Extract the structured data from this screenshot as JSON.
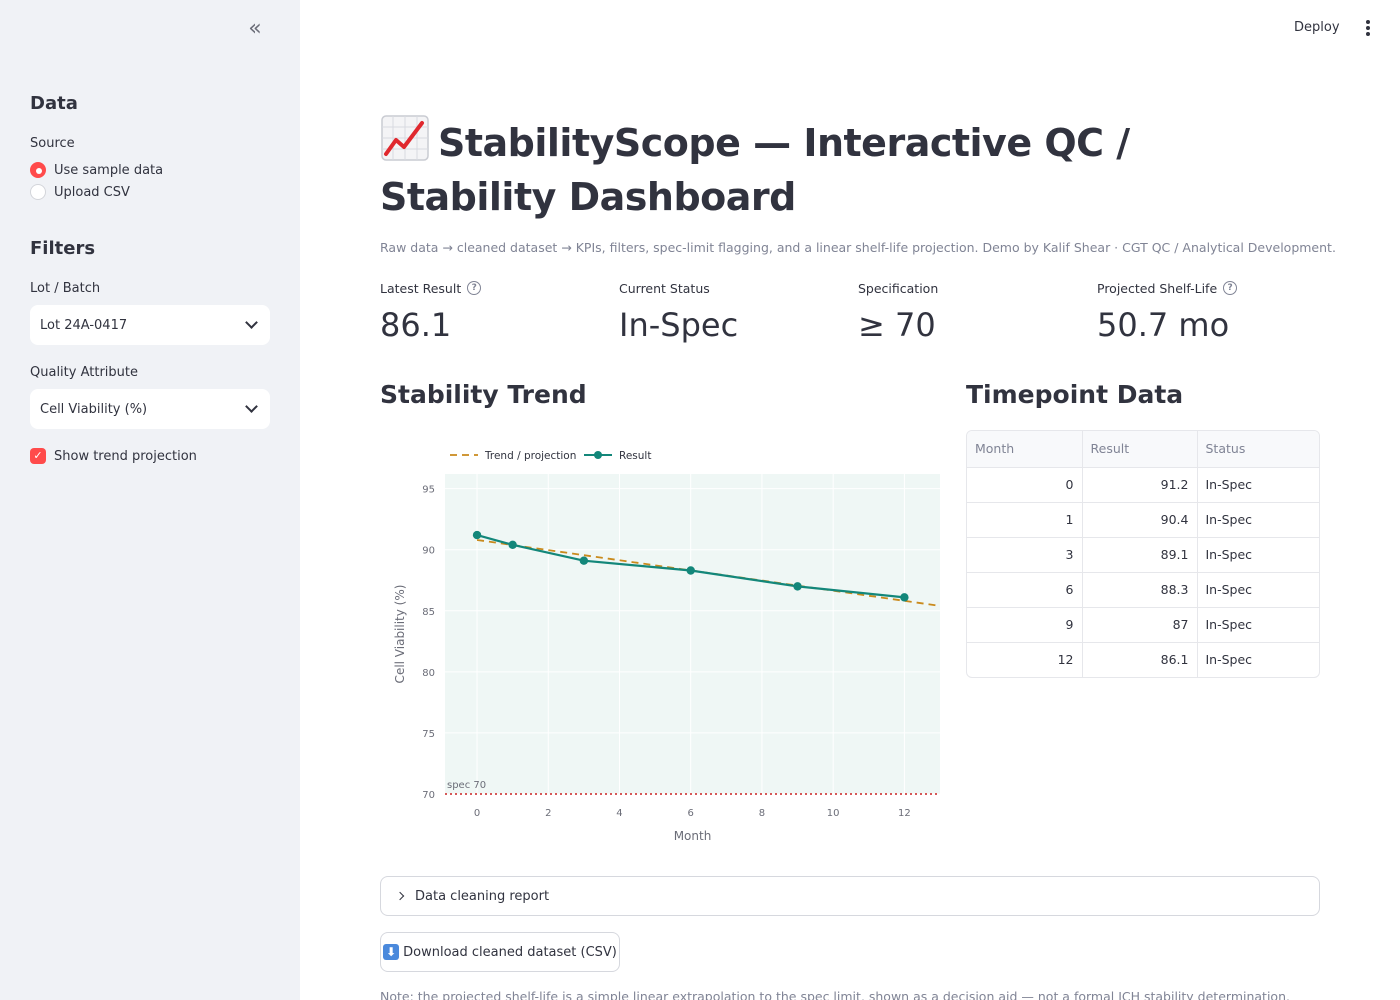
{
  "sidebar": {
    "data_heading": "Data",
    "source_label": "Source",
    "source_options": [
      "Use sample data",
      "Upload CSV"
    ],
    "source_selected": "Use sample data",
    "filters_heading": "Filters",
    "lot_label": "Lot / Batch",
    "lot_value": "Lot 24A-0417",
    "attribute_label": "Quality Attribute",
    "attribute_value": "Cell Viability (%)",
    "trend_checkbox_label": "Show trend projection",
    "trend_checked": true
  },
  "header": {
    "deploy_label": "Deploy"
  },
  "main": {
    "title": "StabilityScope — Interactive QC / Stability Dashboard",
    "caption": "Raw data → cleaned dataset → KPIs, filters, spec-limit flagging, and a linear shelf-life projection. Demo by Kalif Shear · CGT QC / Analytical Development.",
    "metrics": [
      {
        "label": "Latest Result",
        "value": "86.1",
        "help": true
      },
      {
        "label": "Current Status",
        "value": "In-Spec",
        "help": false
      },
      {
        "label": "Specification",
        "value": "≥ 70",
        "help": false
      },
      {
        "label": "Projected Shelf-Life",
        "value": "50.7 mo",
        "help": true
      }
    ],
    "chart_heading": "Stability Trend",
    "table_heading": "Timepoint Data",
    "table": {
      "columns": [
        "Month",
        "Result",
        "Status"
      ],
      "rows": [
        [
          "0",
          "91.2",
          "In-Spec"
        ],
        [
          "1",
          "90.4",
          "In-Spec"
        ],
        [
          "3",
          "89.1",
          "In-Spec"
        ],
        [
          "6",
          "88.3",
          "In-Spec"
        ],
        [
          "9",
          "87",
          "In-Spec"
        ],
        [
          "12",
          "86.1",
          "In-Spec"
        ]
      ]
    },
    "expander_label": "Data cleaning report",
    "download_label": "Download cleaned dataset (CSV)",
    "note": "Note: the projected shelf-life is a simple linear extrapolation to the spec limit, shown as a decision aid — not a formal ICH stability determination."
  },
  "chart_data": {
    "type": "line",
    "xlabel": "Month",
    "ylabel": "Cell Viability (%)",
    "xlim": [
      -0.9,
      13
    ],
    "ylim": [
      70,
      96.2
    ],
    "x_ticks": [
      0,
      2,
      4,
      6,
      8,
      10,
      12
    ],
    "y_ticks": [
      70,
      75,
      80,
      85,
      90,
      95
    ],
    "legend_position": "top-left",
    "spec_limit": {
      "value": 70,
      "label": "spec 70",
      "color": "#cc2222"
    },
    "series": [
      {
        "name": "Trend / projection",
        "style": "dashed",
        "color": "#c98a1c",
        "x": [
          0,
          13
        ],
        "y": [
          90.8,
          85.4
        ]
      },
      {
        "name": "Result",
        "style": "line+markers",
        "color": "#13877a",
        "x": [
          0,
          1,
          3,
          6,
          9,
          12
        ],
        "y": [
          91.2,
          90.4,
          89.1,
          88.3,
          87,
          86.1
        ]
      }
    ],
    "plot_background": "#eff7f5",
    "grid": true
  }
}
